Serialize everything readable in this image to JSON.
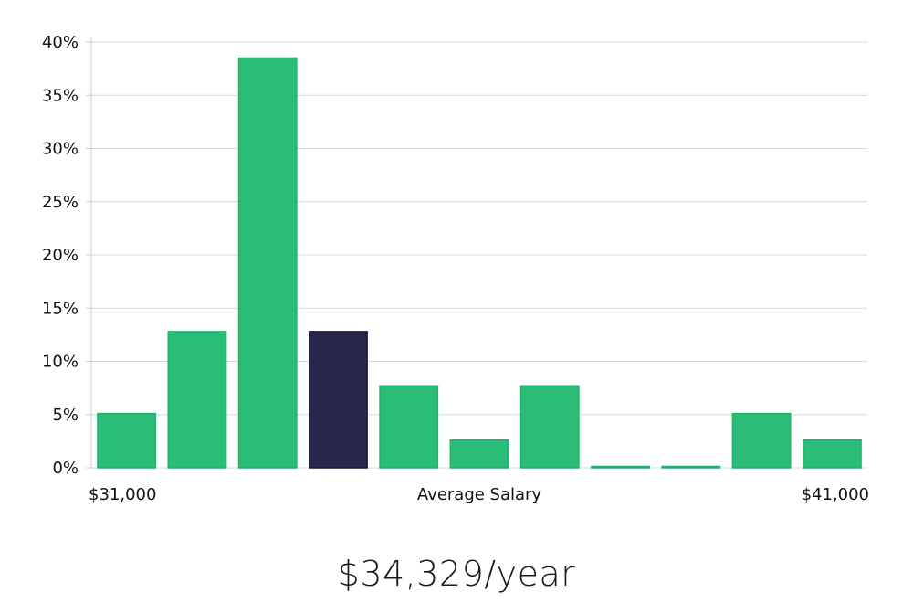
{
  "chart_data": {
    "type": "bar",
    "title": "",
    "xlabel": "Average Salary",
    "x_range_labels": {
      "min": "$31,000",
      "max": "$41,000"
    },
    "ylabel": "",
    "ylim": [
      0,
      40
    ],
    "yticks": [
      "0%",
      "5%",
      "10%",
      "15%",
      "20%",
      "25%",
      "30%",
      "35%",
      "40%"
    ],
    "categories": [
      "1",
      "2",
      "3",
      "4",
      "5",
      "6",
      "7",
      "8",
      "9",
      "10",
      "11"
    ],
    "values": [
      5.1,
      12.8,
      38.5,
      12.8,
      7.7,
      2.6,
      7.7,
      0,
      0,
      5.1,
      2.6
    ],
    "highlight_index": 3,
    "colors": {
      "bar": "#2bbd77",
      "bar_edge": "#1fb26d",
      "highlight": "#28264a",
      "grid": "#d9d9d9",
      "axis": "#cccccc"
    },
    "grid": true
  },
  "footer": {
    "salary_label": "$34,329/year"
  }
}
